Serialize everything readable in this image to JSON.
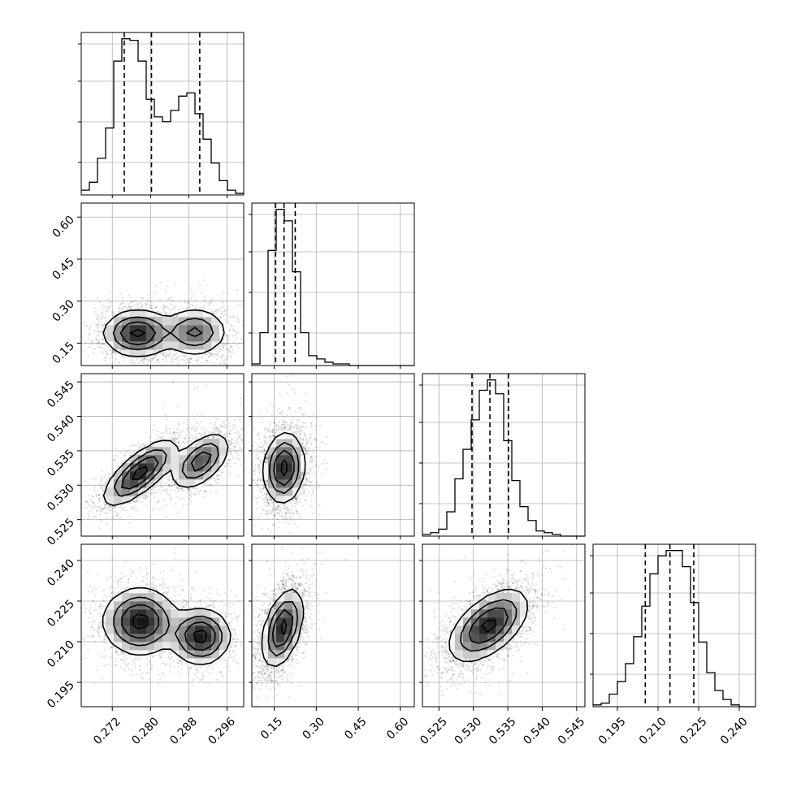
{
  "chart_data": {
    "type": "corner",
    "parameters": [
      {
        "ticks": [
          0.272,
          0.28,
          0.288,
          0.296
        ],
        "tick_labels": [
          "0.272",
          "0.280",
          "0.288",
          "0.296"
        ],
        "range": [
          0.2655,
          0.2995
        ],
        "quantiles": [
          0.2745,
          0.2802,
          0.2903
        ]
      },
      {
        "ticks": [
          0.15,
          0.3,
          0.45,
          0.6
        ],
        "tick_labels": [
          "0.15",
          "0.30",
          "0.45",
          "0.60"
        ],
        "range": [
          0.07,
          0.65
        ],
        "quantiles": [
          0.155,
          0.185,
          0.225
        ]
      },
      {
        "ticks": [
          0.525,
          0.53,
          0.535,
          0.54,
          0.545
        ],
        "tick_labels": [
          "0.525",
          "0.530",
          "0.535",
          "0.540",
          "0.545"
        ],
        "range": [
          0.5226,
          0.5462
        ],
        "quantiles": [
          0.5298,
          0.5324,
          0.5351
        ]
      },
      {
        "ticks": [
          0.195,
          0.21,
          0.225,
          0.24
        ],
        "tick_labels": [
          "0.195",
          "0.210",
          "0.225",
          "0.240"
        ],
        "range": [
          0.186,
          0.246
        ],
        "quantiles": [
          0.2053,
          0.2144,
          0.2232
        ]
      }
    ],
    "histograms": [
      {
        "bin_edges": [
          0.2655,
          0.2672,
          0.2689,
          0.2706,
          0.2723,
          0.274,
          0.2757,
          0.2774,
          0.2791,
          0.2808,
          0.2825,
          0.2842,
          0.2859,
          0.2876,
          0.2893,
          0.291,
          0.2927,
          0.2944,
          0.2961,
          0.2978,
          0.2995
        ],
        "counts": [
          3,
          8,
          23,
          42,
          84,
          98,
          97,
          84,
          60,
          49,
          46,
          53,
          62,
          64,
          51,
          35,
          20,
          9,
          3,
          1
        ]
      },
      {
        "bin_edges": [
          0.07,
          0.099,
          0.128,
          0.157,
          0.186,
          0.215,
          0.244,
          0.273,
          0.302,
          0.331,
          0.36,
          0.389,
          0.418,
          0.447,
          0.476,
          0.505,
          0.534,
          0.563,
          0.592,
          0.621,
          0.65
        ],
        "counts": [
          1,
          20,
          70,
          95,
          88,
          57,
          20,
          6,
          4,
          2,
          1,
          1,
          0,
          0,
          0,
          0,
          0,
          0,
          0,
          0
        ]
      },
      {
        "bin_edges": [
          0.5226,
          0.52378,
          0.52496,
          0.52614,
          0.52732,
          0.5285,
          0.52968,
          0.53086,
          0.53204,
          0.53322,
          0.5344,
          0.53558,
          0.53676,
          0.53794,
          0.53912,
          0.5403,
          0.54148,
          0.54266,
          0.54384,
          0.54502,
          0.5462
        ],
        "counts": [
          1,
          2,
          4,
          14,
          33,
          50,
          67,
          84,
          90,
          82,
          55,
          32,
          17,
          9,
          3,
          2,
          1,
          0,
          0,
          0
        ]
      },
      {
        "bin_edges": [
          0.186,
          0.189,
          0.192,
          0.195,
          0.198,
          0.201,
          0.204,
          0.207,
          0.21,
          0.213,
          0.216,
          0.219,
          0.222,
          0.225,
          0.228,
          0.231,
          0.234,
          0.237,
          0.24,
          0.243,
          0.246
        ],
        "counts": [
          1,
          2,
          7,
          14,
          24,
          39,
          56,
          74,
          84,
          87,
          87,
          78,
          58,
          36,
          19,
          9,
          4,
          1,
          0,
          0
        ]
      }
    ],
    "joint_modes": [
      {
        "row": 1,
        "col": 0,
        "modes": [
          {
            "mx": 0.2773,
            "my": 0.185,
            "sx": 0.0035,
            "sy": 0.04,
            "rho": 0.0,
            "w": 0.6
          },
          {
            "mx": 0.2893,
            "my": 0.19,
            "sx": 0.0033,
            "sy": 0.042,
            "rho": 0.0,
            "w": 0.4
          }
        ]
      },
      {
        "row": 2,
        "col": 0,
        "modes": [
          {
            "mx": 0.2778,
            "my": 0.5318,
            "sx": 0.0037,
            "sy": 0.0023,
            "rho": 0.75,
            "w": 0.6
          },
          {
            "mx": 0.2905,
            "my": 0.5335,
            "sx": 0.003,
            "sy": 0.002,
            "rho": 0.55,
            "w": 0.4
          }
        ]
      },
      {
        "row": 3,
        "col": 0,
        "modes": [
          {
            "mx": 0.2778,
            "my": 0.2175,
            "sx": 0.0038,
            "sy": 0.006,
            "rho": 0.0,
            "w": 0.6
          },
          {
            "mx": 0.2905,
            "my": 0.212,
            "sx": 0.003,
            "sy": 0.005,
            "rho": 0.0,
            "w": 0.4
          }
        ]
      },
      {
        "row": 2,
        "col": 1,
        "modes": [
          {
            "mx": 0.185,
            "my": 0.5325,
            "sx": 0.035,
            "sy": 0.0025,
            "rho": 0.1,
            "w": 1.0
          }
        ]
      },
      {
        "row": 3,
        "col": 1,
        "modes": [
          {
            "mx": 0.18,
            "my": 0.215,
            "sx": 0.035,
            "sy": 0.007,
            "rho": 0.45,
            "w": 1.0
          }
        ]
      },
      {
        "row": 3,
        "col": 2,
        "modes": [
          {
            "mx": 0.5322,
            "my": 0.216,
            "sx": 0.0028,
            "sy": 0.0065,
            "rho": 0.55,
            "w": 1.0
          }
        ]
      }
    ],
    "grid": true,
    "title": "",
    "xlabel": "",
    "ylabel": ""
  }
}
